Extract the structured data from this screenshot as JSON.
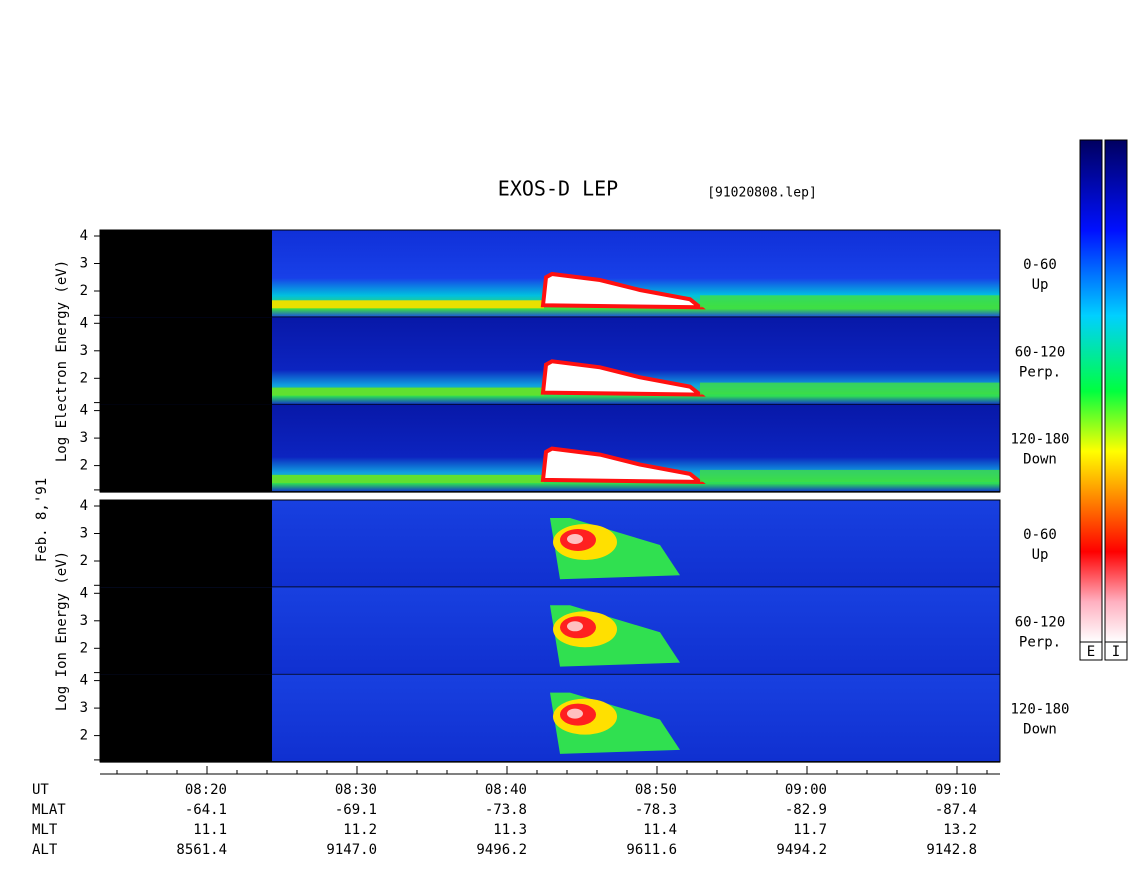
{
  "title": "EXOS-D LEP",
  "file": "[91020808.lep]",
  "date": "Feb. 8,'91",
  "groups": [
    {
      "axis_label": "Log  Electron  Energy (eV)",
      "panels": [
        {
          "label": "0-60",
          "sublabel": "Up",
          "ticks": [
            "4",
            "3",
            "2"
          ]
        },
        {
          "label": "60-120",
          "sublabel": "Perp.",
          "ticks": [
            "4",
            "3",
            "2"
          ]
        },
        {
          "label": "120-180",
          "sublabel": "Down",
          "ticks": [
            "4",
            "3",
            "2"
          ]
        }
      ]
    },
    {
      "axis_label": "Log  Ion  Energy (eV)",
      "panels": [
        {
          "label": "0-60",
          "sublabel": "Up",
          "ticks": [
            "4",
            "3",
            "2"
          ]
        },
        {
          "label": "60-120",
          "sublabel": "Perp.",
          "ticks": [
            "4",
            "3",
            "2"
          ]
        },
        {
          "label": "120-180",
          "sublabel": "Down",
          "ticks": [
            "4",
            "3",
            "2"
          ]
        }
      ]
    }
  ],
  "time_axis": {
    "rows": [
      {
        "name": "UT",
        "values": [
          "08:20",
          "08:30",
          "08:40",
          "08:50",
          "09:00",
          "09:10"
        ]
      },
      {
        "name": "MLAT",
        "values": [
          "-64.1",
          "-69.1",
          "-73.8",
          "-78.3",
          "-82.9",
          "-87.4"
        ]
      },
      {
        "name": "MLT",
        "values": [
          "11.1",
          "11.2",
          "11.3",
          "11.4",
          "11.7",
          "13.2"
        ]
      },
      {
        "name": "ALT",
        "values": [
          "8561.4",
          "9147.0",
          "9496.2",
          "9611.6",
          "9494.2",
          "9142.8"
        ]
      }
    ]
  },
  "colorbars": [
    "E",
    "I"
  ]
}
